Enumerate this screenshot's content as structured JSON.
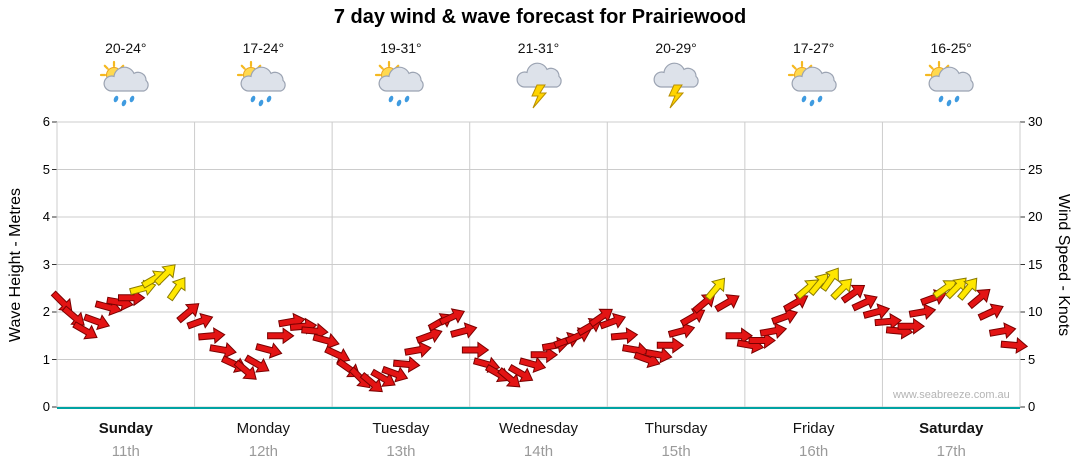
{
  "title": "7 day wind & wave forecast for Prairiewood",
  "watermark": "www.seabreeze.com.au",
  "axes": {
    "left_label": "Wave Height - Metres",
    "right_label": "Wind Speed - Knots",
    "left_ticks": [
      0,
      1,
      2,
      3,
      4,
      5,
      6
    ],
    "right_ticks": [
      0,
      5,
      10,
      15,
      20,
      25,
      30
    ],
    "baseline_color": "#00a3a3",
    "grid_color": "#cccccc"
  },
  "days": [
    {
      "name": "Sunday",
      "date": "11th",
      "temp": "20-24°",
      "icon": "sun-cloud-rain",
      "emphasis": true
    },
    {
      "name": "Monday",
      "date": "12th",
      "temp": "17-24°",
      "icon": "sun-cloud-rain",
      "emphasis": false
    },
    {
      "name": "Tuesday",
      "date": "13th",
      "temp": "19-31°",
      "icon": "sun-cloud-rain",
      "emphasis": false
    },
    {
      "name": "Wednesday",
      "date": "14th",
      "temp": "21-31°",
      "icon": "storm",
      "emphasis": false
    },
    {
      "name": "Thursday",
      "date": "15th",
      "temp": "20-29°",
      "icon": "storm",
      "emphasis": false
    },
    {
      "name": "Friday",
      "date": "16th",
      "temp": "17-27°",
      "icon": "sun-cloud-rain",
      "emphasis": false
    },
    {
      "name": "Saturday",
      "date": "17th",
      "temp": "16-25°",
      "icon": "sun-cloud-rain",
      "emphasis": true
    }
  ],
  "chart_data": {
    "type": "scatter",
    "title": "7 day wind & wave forecast for Prairiewood",
    "ylabel_left": "Wave Height - Metres",
    "ylabel_right": "Wind Speed - Knots",
    "ylim_metres": [
      0,
      6
    ],
    "ylim_knots": [
      0,
      30
    ],
    "grid": true,
    "legend": "none",
    "categories": [
      "Sunday",
      "Monday",
      "Tuesday",
      "Wednesday",
      "Thursday",
      "Friday",
      "Saturday"
    ],
    "samples_per_day": 12,
    "wind_speed_knots": [
      11,
      9.5,
      8,
      9,
      10.5,
      11,
      11.5,
      12.5,
      13.5,
      14,
      12.5,
      10,
      9,
      7.5,
      6,
      4.5,
      3.8,
      4.5,
      6,
      7.5,
      9,
      8.5,
      8,
      7,
      5.5,
      4,
      3,
      2.5,
      3,
      3.5,
      4.5,
      6,
      7.5,
      9,
      9.5,
      8,
      6,
      4.5,
      3.5,
      3,
      3.5,
      4.5,
      5.5,
      6.5,
      7,
      7.5,
      8.5,
      9.5,
      9,
      7.5,
      6,
      5,
      5.5,
      6.5,
      8,
      9.5,
      11,
      12.5,
      11,
      7.5,
      6.5,
      7,
      8,
      9.5,
      11,
      12.5,
      13,
      13.5,
      12.5,
      12,
      11,
      10,
      9,
      8,
      8.5,
      10,
      11.5,
      12.5,
      12.6,
      12.5,
      11.5,
      10,
      8,
      6.5
    ],
    "wind_direction_deg": [
      135,
      130,
      120,
      110,
      105,
      100,
      90,
      75,
      60,
      45,
      35,
      50,
      70,
      85,
      100,
      115,
      130,
      120,
      105,
      90,
      80,
      85,
      95,
      105,
      115,
      125,
      135,
      130,
      120,
      110,
      95,
      80,
      70,
      60,
      65,
      75,
      90,
      105,
      120,
      130,
      120,
      105,
      90,
      80,
      70,
      65,
      60,
      55,
      70,
      85,
      100,
      110,
      100,
      90,
      75,
      60,
      50,
      40,
      60,
      90,
      100,
      90,
      80,
      70,
      60,
      50,
      40,
      35,
      45,
      55,
      65,
      75,
      85,
      95,
      90,
      80,
      70,
      55,
      45,
      40,
      50,
      65,
      80,
      95
    ],
    "arrow_color_normal": "#e31414",
    "arrow_color_strong": "#ffe700",
    "arrow_outline_normal": "#7a0000",
    "arrow_outline_strong": "#8a7a00",
    "strong_threshold_knots": 12.4
  }
}
